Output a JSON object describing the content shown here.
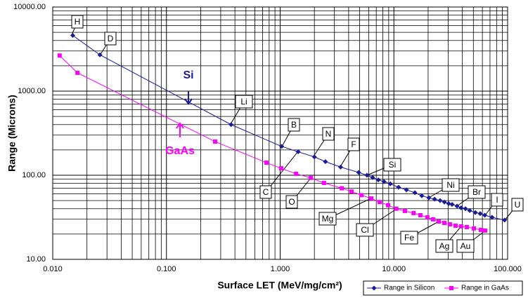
{
  "chart_data": {
    "type": "line",
    "x_label": "Surface LET (MeV/mg/cm²)",
    "y_label": "Range (Microns)",
    "xscale": "log",
    "yscale": "log",
    "xlim": [
      0.01,
      100
    ],
    "ylim": [
      10,
      10000
    ],
    "xticks": [
      {
        "value": 0.01,
        "label": "0.010"
      },
      {
        "value": 0.1,
        "label": "0.100"
      },
      {
        "value": 1,
        "label": "1.000"
      },
      {
        "value": 10,
        "label": "10.000"
      },
      {
        "value": 100,
        "label": "100.000"
      }
    ],
    "yticks": [
      {
        "value": 10,
        "label": "10.00"
      },
      {
        "value": 100,
        "label": "100.00"
      },
      {
        "value": 1000,
        "label": "1000.00"
      },
      {
        "value": 10000,
        "label": "10000.00"
      }
    ],
    "grid": true,
    "minor_grid": true,
    "legend": "lower right",
    "series": [
      {
        "name": "Range in Silicon",
        "color": "#1a1a9c",
        "marker": "diamond",
        "label": "Si",
        "x": [
          0.015,
          0.026,
          0.37,
          1.03,
          1.44,
          2.0,
          2.5,
          3.4,
          4.9,
          5.8,
          6.5,
          7.3,
          8.2,
          9.3,
          11,
          12.9,
          15.3,
          17.6,
          20.3,
          22.8,
          25.5,
          27.8,
          30.3,
          32.5,
          35.9,
          39,
          42.6,
          46.4,
          52,
          57.4,
          63,
          73,
          94
        ],
        "values": [
          4600,
          2700,
          400,
          220,
          190,
          165,
          145,
          125,
          108,
          100,
          94,
          88,
          84,
          79,
          72,
          67,
          62,
          57,
          54,
          52,
          50,
          48,
          46,
          45,
          43,
          41,
          40,
          38,
          36,
          35,
          33.5,
          31.6,
          29.3
        ]
      },
      {
        "name": "Range in GaAs",
        "color": "#ff00ff",
        "marker": "square",
        "label": "GaAs",
        "x": [
          0.0115,
          0.0165,
          0.268,
          0.757,
          1.02,
          1.38,
          1.86,
          2.43,
          3.48,
          4.24,
          5.18,
          6.32,
          7.5,
          8.9,
          10.5,
          12.5,
          14.9,
          17.1,
          19.7,
          22.1,
          24.8,
          27.8,
          31.1,
          34.9,
          39,
          43.8,
          50.5,
          58.2,
          63.4
        ],
        "values": [
          2650,
          1650,
          251,
          141,
          121,
          104,
          93,
          81,
          70,
          64,
          58,
          53,
          48,
          44,
          40,
          37.6,
          35.5,
          33.5,
          31.6,
          29.9,
          28.2,
          27.1,
          26.1,
          25.1,
          24.7,
          24.2,
          23.3,
          22.4,
          22.0
        ]
      }
    ],
    "annotations": [
      "H",
      "D",
      "Li",
      "B",
      "N",
      "F",
      "Si",
      "Ni",
      "Br",
      "I",
      "U",
      "C",
      "O",
      "Mg",
      "Cl",
      "Fe",
      "Ag",
      "Au"
    ]
  }
}
